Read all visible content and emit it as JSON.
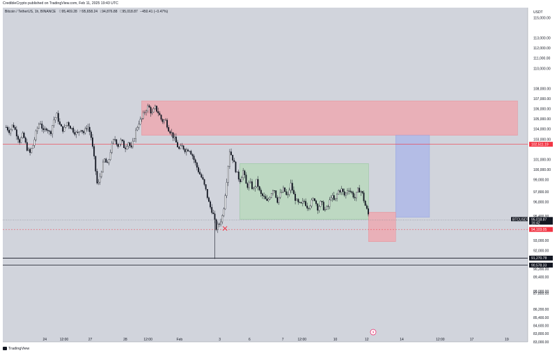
{
  "header": {
    "publisher": "CredibleCrypto published on TradingView.com, Feb 11, 2025 19:43 UTC"
  },
  "legend": {
    "symbol": "Bitcoin / TetherUS, 1h, BINANCE",
    "o_label": "O",
    "o_value": "95,469.28",
    "h_label": "H",
    "h_value": "95,658.24",
    "l_label": "L",
    "l_value": "94,876.88",
    "c_label": "C",
    "c_value": "95,018.87",
    "change": "−450.41 (−0.47%)"
  },
  "currency_label": "USDT",
  "footer": {
    "brand": "TradingView"
  },
  "colors": {
    "background": "#d1d4dc",
    "candle": "#131722",
    "supply_zone": "#f0a4ac",
    "range_box": "#b5dab9",
    "target_box": "#a9b6ea",
    "stop_box": "#f0a4ac",
    "red_line": "#f23645",
    "price_tag": "#131722",
    "marker_x": "#f23645"
  },
  "chart_data": {
    "type": "candlestick",
    "symbol": "BTCUSDT",
    "timeframe": "1h",
    "ylim": [
      83000,
      116000
    ],
    "y_ticks": [
      "115,000.00",
      "113,000.00",
      "112,000.00",
      "111,000.00",
      "110,000.00",
      "108,000.00",
      "107,000.00",
      "106,000.00",
      "105,000.00",
      "104,000.00",
      "103,000.00",
      "101,000.00",
      "100,000.00",
      "99,000.00",
      "97,800.00",
      "96,800.00",
      "95,400.00",
      "93,000.00",
      "92,000.00",
      "90,200.00",
      "89,400.00",
      "88,000.00",
      "87,800.00",
      "86,200.00",
      "85,400.00",
      "84,600.00",
      "83,800.00",
      "83,000.00"
    ],
    "x_ticks": [
      "24",
      "12:00",
      "27",
      "28",
      "12:00",
      "Feb",
      "3",
      "6",
      "7",
      "12:00",
      "10",
      "12",
      "14",
      "12:00",
      "17",
      "19"
    ],
    "price_path": [
      [
        0.5,
        104200
      ],
      [
        1,
        103800
      ],
      [
        1.5,
        104500
      ],
      [
        2,
        103600
      ],
      [
        2.5,
        102800
      ],
      [
        3,
        103500
      ],
      [
        3.5,
        102200
      ],
      [
        4,
        101600
      ],
      [
        4.5,
        102500
      ],
      [
        5,
        103900
      ],
      [
        5.5,
        104800
      ],
      [
        6,
        103700
      ],
      [
        6.5,
        104200
      ],
      [
        7,
        103500
      ],
      [
        7.5,
        104900
      ],
      [
        8,
        105400
      ],
      [
        8.5,
        104200
      ],
      [
        9,
        103900
      ],
      [
        9.5,
        104700
      ],
      [
        10,
        104200
      ],
      [
        10.5,
        103800
      ],
      [
        11,
        103500
      ],
      [
        11.5,
        104100
      ],
      [
        12,
        103600
      ],
      [
        12.5,
        104400
      ],
      [
        13,
        103400
      ],
      [
        13.5,
        101000
      ],
      [
        14,
        98200
      ],
      [
        14.5,
        99800
      ],
      [
        15,
        101000
      ],
      [
        15.5,
        100400
      ],
      [
        16,
        102200
      ],
      [
        16.5,
        103100
      ],
      [
        17,
        102400
      ],
      [
        17.5,
        102900
      ],
      [
        18,
        102100
      ],
      [
        18.5,
        102800
      ],
      [
        19,
        102000
      ],
      [
        19.5,
        103500
      ],
      [
        20,
        104600
      ],
      [
        20.5,
        105000
      ],
      [
        21,
        105800
      ],
      [
        21.5,
        106300
      ],
      [
        22,
        105500
      ],
      [
        22.5,
        106100
      ],
      [
        23,
        105600
      ],
      [
        23.5,
        104800
      ],
      [
        24,
        104900
      ],
      [
        24.5,
        104000
      ],
      [
        25,
        103500
      ],
      [
        25.5,
        102800
      ],
      [
        26,
        102000
      ],
      [
        26.5,
        102300
      ],
      [
        27,
        101900
      ],
      [
        27.5,
        102100
      ],
      [
        28,
        101400
      ],
      [
        28.5,
        100500
      ],
      [
        29,
        99700
      ],
      [
        29.5,
        99000
      ],
      [
        30,
        97900
      ],
      [
        30.5,
        96500
      ],
      [
        31,
        95800
      ],
      [
        31.5,
        94200
      ],
      [
        32,
        94700
      ],
      [
        32.5,
        95600
      ],
      [
        33,
        98600
      ],
      [
        33.5,
        101900
      ],
      [
        34,
        101000
      ],
      [
        34.5,
        99700
      ],
      [
        35,
        98900
      ],
      [
        35.5,
        99900
      ],
      [
        36,
        98300
      ],
      [
        36.5,
        98700
      ],
      [
        37,
        98000
      ],
      [
        37.5,
        98900
      ],
      [
        38,
        97600
      ],
      [
        38.5,
        97300
      ],
      [
        39,
        96800
      ],
      [
        39.5,
        97500
      ],
      [
        40,
        98300
      ],
      [
        40.5,
        96900
      ],
      [
        41,
        97600
      ],
      [
        41.5,
        98100
      ],
      [
        42,
        97200
      ],
      [
        42.5,
        98600
      ],
      [
        43,
        97400
      ],
      [
        43.5,
        96700
      ],
      [
        44,
        96500
      ],
      [
        44.5,
        96900
      ],
      [
        45,
        96300
      ],
      [
        45.5,
        96700
      ],
      [
        46,
        97200
      ],
      [
        46.5,
        96200
      ],
      [
        47,
        96800
      ],
      [
        47.5,
        96000
      ],
      [
        48,
        96300
      ],
      [
        48.5,
        97500
      ],
      [
        49,
        96800
      ],
      [
        49.5,
        97900
      ],
      [
        50,
        98000
      ],
      [
        50.5,
        97400
      ],
      [
        51,
        98200
      ],
      [
        51.5,
        97700
      ],
      [
        52,
        97200
      ],
      [
        52.5,
        98100
      ],
      [
        53,
        97800
      ],
      [
        53.5,
        96500
      ],
      [
        54,
        95500
      ]
    ],
    "zones": [
      {
        "type": "supply",
        "x": [
          20.5,
          76
        ],
        "y": [
          103400,
          106800
        ]
      },
      {
        "type": "range",
        "x": [
          35,
          54
        ],
        "y": [
          95100,
          100600
        ]
      },
      {
        "type": "target",
        "x": [
          58,
          63
        ],
        "y": [
          95300,
          103400
        ]
      },
      {
        "type": "stop",
        "x": [
          54,
          58
        ],
        "y": [
          92900,
          95800
        ]
      }
    ],
    "h_lines": [
      {
        "price": 102511,
        "label": "102,511.19",
        "style": "solid-red"
      },
      {
        "price": 94103,
        "label": "94,103.05",
        "style": "dashed-red"
      },
      {
        "price": 95018.87,
        "label": "BTCUSDT",
        "value": "95,018.87",
        "sub": "16:42",
        "style": "dotted-gray"
      },
      {
        "price": 91271,
        "label": "91,270.78",
        "style": "solid-black"
      },
      {
        "price": 90579,
        "label": "90,578.33",
        "style": "solid-black"
      }
    ],
    "marker_x_price": 94200,
    "marker_x_pos": 32.8
  }
}
